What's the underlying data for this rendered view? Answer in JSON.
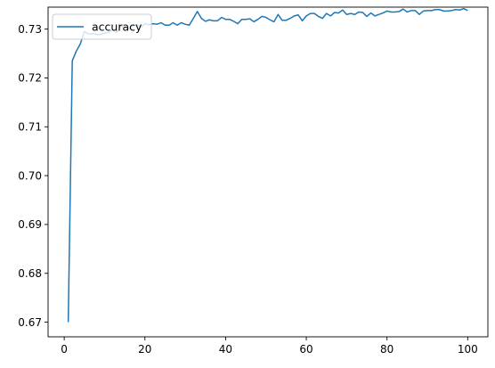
{
  "chart_data": {
    "type": "line",
    "title": "",
    "xlabel": "",
    "ylabel": "",
    "xlim": [
      -4,
      105
    ],
    "ylim": [
      0.667,
      0.7345
    ],
    "x_ticks": [
      0,
      20,
      40,
      60,
      80,
      100
    ],
    "y_ticks": [
      0.67,
      0.68,
      0.69,
      0.7,
      0.71,
      0.72,
      0.73
    ],
    "x_tick_labels": [
      "0",
      "20",
      "40",
      "60",
      "80",
      "100"
    ],
    "y_tick_labels": [
      "0.67",
      "0.68",
      "0.69",
      "0.70",
      "0.71",
      "0.72",
      "0.73"
    ],
    "grid": false,
    "legend": {
      "position": "upper-left"
    },
    "series": [
      {
        "name": "accuracy",
        "color": "#1f77b4",
        "x": [
          1,
          2,
          3,
          4,
          5,
          6,
          7,
          8,
          9,
          10,
          11,
          12,
          13,
          14,
          15,
          16,
          17,
          18,
          19,
          20,
          21,
          22,
          23,
          24,
          25,
          26,
          27,
          28,
          29,
          30,
          31,
          32,
          33,
          34,
          35,
          36,
          37,
          38,
          39,
          40,
          41,
          42,
          43,
          44,
          45,
          46,
          47,
          48,
          49,
          50,
          51,
          52,
          53,
          54,
          55,
          56,
          57,
          58,
          59,
          60,
          61,
          62,
          63,
          64,
          65,
          66,
          67,
          68,
          69,
          70,
          71,
          72,
          73,
          74,
          75,
          76,
          77,
          78,
          79,
          80,
          81,
          82,
          83,
          84,
          85,
          86,
          87,
          88,
          89,
          90,
          91,
          92,
          93,
          94,
          95,
          96,
          97,
          98,
          99,
          100
        ],
        "y": [
          0.67,
          0.7235,
          0.7255,
          0.727,
          0.7295,
          0.729,
          0.7291,
          0.7289,
          0.7289,
          0.7292,
          0.7293,
          0.7298,
          0.7293,
          0.7306,
          0.7304,
          0.7301,
          0.7306,
          0.7309,
          0.7304,
          0.7311,
          0.7309,
          0.7311,
          0.731,
          0.7313,
          0.7308,
          0.7308,
          0.7313,
          0.7308,
          0.7313,
          0.731,
          0.7308,
          0.7322,
          0.7336,
          0.7322,
          0.7316,
          0.7319,
          0.7317,
          0.7317,
          0.7324,
          0.732,
          0.732,
          0.7316,
          0.7311,
          0.732,
          0.732,
          0.7321,
          0.7315,
          0.732,
          0.7326,
          0.7324,
          0.7319,
          0.7315,
          0.733,
          0.7318,
          0.7318,
          0.7322,
          0.7327,
          0.7329,
          0.7317,
          0.7327,
          0.7332,
          0.7332,
          0.7326,
          0.7322,
          0.7332,
          0.7327,
          0.7334,
          0.7333,
          0.7339,
          0.733,
          0.7332,
          0.733,
          0.7335,
          0.7334,
          0.7326,
          0.7333,
          0.7327,
          0.733,
          0.7333,
          0.7337,
          0.7335,
          0.7335,
          0.7336,
          0.7341,
          0.7335,
          0.7338,
          0.7338,
          0.733,
          0.7337,
          0.7338,
          0.7338,
          0.734,
          0.734,
          0.7337,
          0.7337,
          0.7338,
          0.734,
          0.7339,
          0.7342,
          0.7338
        ]
      }
    ]
  }
}
